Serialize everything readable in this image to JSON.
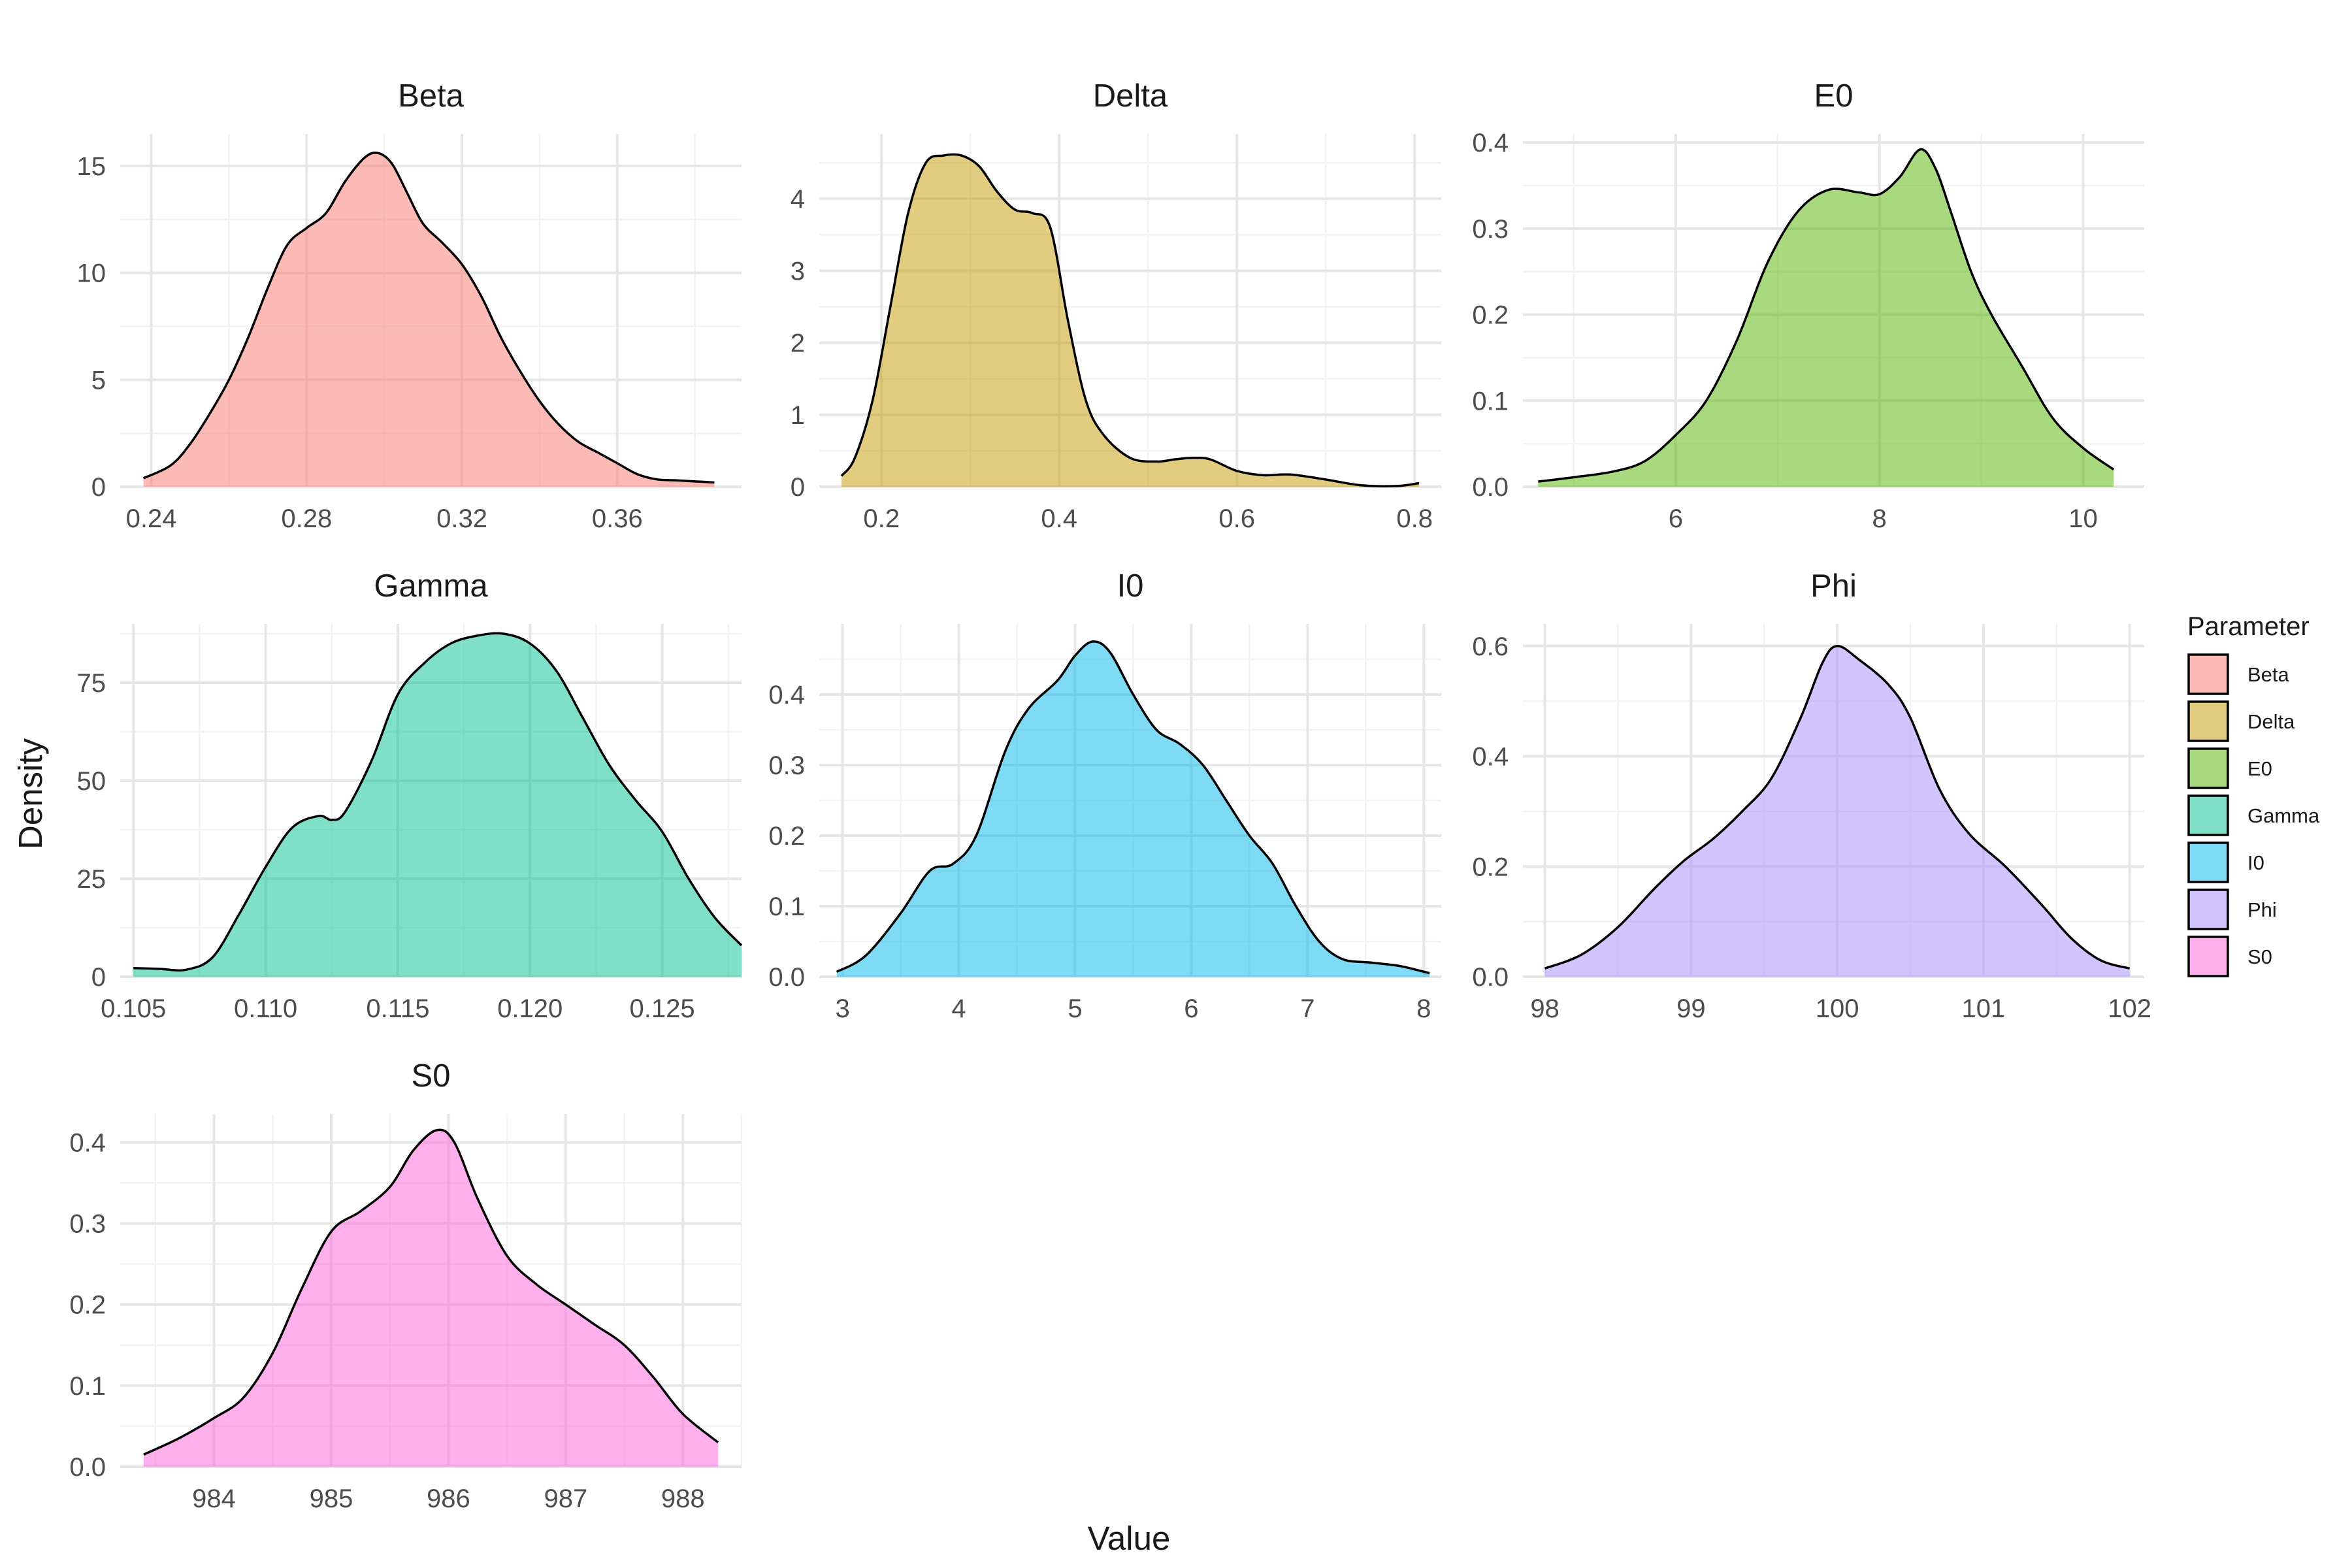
{
  "chart_data": {
    "type": "area",
    "xlabel": "Value",
    "ylabel": "Density",
    "legend": {
      "title": "Parameter",
      "placement": "right",
      "entries": [
        {
          "label": "Beta",
          "color": "#F8766D"
        },
        {
          "label": "Delta",
          "color": "#C49A00"
        },
        {
          "label": "E0",
          "color": "#53B400"
        },
        {
          "label": "Gamma",
          "color": "#00C094"
        },
        {
          "label": "I0",
          "color": "#00B6EB"
        },
        {
          "label": "Phi",
          "color": "#A58AFF"
        },
        {
          "label": "S0",
          "color": "#FB61D7"
        }
      ]
    },
    "grid": true,
    "facets": [
      {
        "title": "Beta",
        "color": "#F8766D",
        "xlim": [
          0.232,
          0.392
        ],
        "ylim": [
          0,
          16.5
        ],
        "xticks": [
          0.24,
          0.28,
          0.32,
          0.36
        ],
        "xtick_labels": [
          "0.24",
          "0.28",
          "0.32",
          "0.36"
        ],
        "yticks": [
          0,
          5,
          10,
          15
        ],
        "ytick_labels": [
          "0",
          "5",
          "10",
          "15"
        ],
        "x": [
          0.238,
          0.245,
          0.25,
          0.255,
          0.26,
          0.265,
          0.27,
          0.275,
          0.28,
          0.285,
          0.29,
          0.295,
          0.2985,
          0.302,
          0.306,
          0.31,
          0.315,
          0.32,
          0.325,
          0.33,
          0.335,
          0.34,
          0.345,
          0.35,
          0.355,
          0.36,
          0.365,
          0.37,
          0.375,
          0.38,
          0.385
        ],
        "y": [
          0.4,
          1.0,
          2.0,
          3.4,
          5.0,
          7.0,
          9.3,
          11.3,
          12.1,
          12.8,
          14.3,
          15.4,
          15.6,
          15.1,
          13.7,
          12.3,
          11.4,
          10.4,
          8.9,
          7.0,
          5.4,
          4.0,
          2.9,
          2.1,
          1.6,
          1.1,
          0.6,
          0.35,
          0.3,
          0.25,
          0.2
        ]
      },
      {
        "title": "Delta",
        "color": "#C49A00",
        "xlim": [
          0.13,
          0.83
        ],
        "ylim": [
          0,
          4.9
        ],
        "xticks": [
          0.2,
          0.4,
          0.6,
          0.8
        ],
        "xtick_labels": [
          "0.2",
          "0.4",
          "0.6",
          "0.8"
        ],
        "yticks": [
          0,
          1,
          2,
          3,
          4
        ],
        "ytick_labels": [
          "0",
          "1",
          "2",
          "3",
          "4"
        ],
        "x": [
          0.155,
          0.17,
          0.19,
          0.21,
          0.23,
          0.25,
          0.27,
          0.29,
          0.31,
          0.33,
          0.35,
          0.37,
          0.39,
          0.41,
          0.43,
          0.45,
          0.48,
          0.51,
          0.53,
          0.55,
          0.57,
          0.6,
          0.63,
          0.66,
          0.7,
          0.74,
          0.78,
          0.805
        ],
        "y": [
          0.15,
          0.4,
          1.2,
          2.5,
          3.8,
          4.5,
          4.6,
          4.6,
          4.45,
          4.1,
          3.85,
          3.8,
          3.6,
          2.3,
          1.2,
          0.72,
          0.4,
          0.35,
          0.38,
          0.4,
          0.38,
          0.22,
          0.16,
          0.17,
          0.1,
          0.02,
          0.01,
          0.05
        ]
      },
      {
        "title": "E0",
        "color": "#53B400",
        "xlim": [
          4.5,
          10.6
        ],
        "ylim": [
          0,
          0.41
        ],
        "xticks": [
          6,
          8,
          10
        ],
        "xtick_labels": [
          "6",
          "8",
          "10"
        ],
        "yticks": [
          0,
          0.1,
          0.2,
          0.3,
          0.4
        ],
        "ytick_labels": [
          "0.0",
          "0.1",
          "0.2",
          "0.3",
          "0.4"
        ],
        "x": [
          4.65,
          5.0,
          5.4,
          5.7,
          6.0,
          6.3,
          6.6,
          6.9,
          7.2,
          7.5,
          7.8,
          8.0,
          8.2,
          8.4,
          8.55,
          8.7,
          8.9,
          9.1,
          9.4,
          9.7,
          10.0,
          10.3
        ],
        "y": [
          0.006,
          0.011,
          0.018,
          0.03,
          0.06,
          0.1,
          0.17,
          0.26,
          0.32,
          0.345,
          0.342,
          0.34,
          0.36,
          0.392,
          0.37,
          0.32,
          0.25,
          0.2,
          0.14,
          0.08,
          0.045,
          0.02
        ]
      },
      {
        "title": "Gamma",
        "color": "#00C094",
        "xlim": [
          0.1045,
          0.128
        ],
        "ylim": [
          0,
          90
        ],
        "xticks": [
          0.105,
          0.11,
          0.115,
          0.12,
          0.125
        ],
        "xtick_labels": [
          "0.105",
          "0.110",
          "0.115",
          "0.120",
          "0.125"
        ],
        "yticks": [
          0,
          25,
          50,
          75
        ],
        "ytick_labels": [
          "0",
          "25",
          "50",
          "75"
        ],
        "x": [
          0.105,
          0.106,
          0.107,
          0.108,
          0.109,
          0.11,
          0.111,
          0.112,
          0.1125,
          0.113,
          0.114,
          0.115,
          0.116,
          0.117,
          0.118,
          0.119,
          0.12,
          0.121,
          0.122,
          0.123,
          0.124,
          0.125,
          0.126,
          0.127,
          0.128
        ],
        "y": [
          2.2,
          2.0,
          1.8,
          5,
          16,
          28,
          38,
          41,
          40,
          42,
          55,
          72,
          80,
          85,
          87,
          87.5,
          85,
          78,
          66,
          54,
          45,
          37,
          25,
          15,
          8
        ]
      },
      {
        "title": "I0",
        "color": "#00B6EB",
        "xlim": [
          2.8,
          8.15
        ],
        "ylim": [
          0,
          0.5
        ],
        "xticks": [
          3,
          4,
          5,
          6,
          7,
          8
        ],
        "xtick_labels": [
          "3",
          "4",
          "5",
          "6",
          "7",
          "8"
        ],
        "yticks": [
          0,
          0.1,
          0.2,
          0.3,
          0.4
        ],
        "ytick_labels": [
          "0.0",
          "0.1",
          "0.2",
          "0.3",
          "0.4"
        ],
        "x": [
          2.95,
          3.2,
          3.5,
          3.75,
          3.95,
          4.15,
          4.4,
          4.6,
          4.85,
          5.0,
          5.15,
          5.3,
          5.5,
          5.7,
          5.9,
          6.1,
          6.3,
          6.5,
          6.7,
          6.9,
          7.1,
          7.3,
          7.55,
          7.8,
          8.05
        ],
        "y": [
          0.007,
          0.03,
          0.09,
          0.15,
          0.16,
          0.2,
          0.32,
          0.38,
          0.42,
          0.455,
          0.475,
          0.46,
          0.4,
          0.35,
          0.33,
          0.3,
          0.25,
          0.2,
          0.16,
          0.1,
          0.05,
          0.025,
          0.02,
          0.015,
          0.005
        ]
      },
      {
        "title": "Phi",
        "color": "#A58AFF",
        "xlim": [
          97.85,
          102.1
        ],
        "ylim": [
          0,
          0.64
        ],
        "xticks": [
          98,
          99,
          100,
          101,
          102
        ],
        "xtick_labels": [
          "98",
          "99",
          "100",
          "101",
          "102"
        ],
        "yticks": [
          0,
          0.2,
          0.4,
          0.6
        ],
        "ytick_labels": [
          "0.0",
          "0.2",
          "0.4",
          "0.6"
        ],
        "x": [
          98.0,
          98.25,
          98.5,
          98.75,
          98.95,
          99.15,
          99.35,
          99.55,
          99.75,
          99.9,
          100.0,
          100.15,
          100.35,
          100.5,
          100.7,
          100.9,
          101.15,
          101.4,
          101.6,
          101.8,
          102.0
        ],
        "y": [
          0.015,
          0.04,
          0.09,
          0.16,
          0.21,
          0.25,
          0.3,
          0.36,
          0.47,
          0.57,
          0.6,
          0.575,
          0.53,
          0.47,
          0.34,
          0.26,
          0.2,
          0.13,
          0.07,
          0.03,
          0.015
        ]
      },
      {
        "title": "S0",
        "color": "#FB61D7",
        "xlim": [
          983.2,
          988.5
        ],
        "ylim": [
          0,
          0.435
        ],
        "xticks": [
          984,
          985,
          986,
          987,
          988
        ],
        "xtick_labels": [
          "984",
          "985",
          "986",
          "987",
          "988"
        ],
        "yticks": [
          0,
          0.1,
          0.2,
          0.3,
          0.4
        ],
        "ytick_labels": [
          "0.0",
          "0.1",
          "0.2",
          "0.3",
          "0.4"
        ],
        "x": [
          983.4,
          983.7,
          984.0,
          984.25,
          984.5,
          984.75,
          985.0,
          985.25,
          985.5,
          985.7,
          985.9,
          986.05,
          986.25,
          986.5,
          986.75,
          987.0,
          987.25,
          987.5,
          987.75,
          988.0,
          988.3
        ],
        "y": [
          0.015,
          0.035,
          0.06,
          0.085,
          0.14,
          0.22,
          0.29,
          0.315,
          0.345,
          0.39,
          0.415,
          0.4,
          0.33,
          0.26,
          0.225,
          0.2,
          0.175,
          0.15,
          0.11,
          0.065,
          0.03
        ]
      }
    ]
  }
}
